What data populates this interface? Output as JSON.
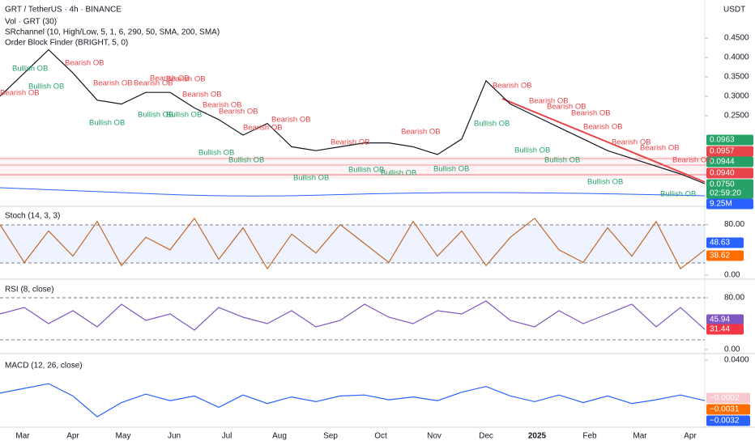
{
  "header": {
    "title": "GRT / TetherUS · 4h · BINANCE",
    "currency": "USDT",
    "indicators": [
      "Vol · GRT (30)",
      "SRchannel (10, High/Low, 5, 1, 6, 290, 50, SMA, 200, SMA)",
      "Order Block Finder (BRIGHT, 5, 0)"
    ]
  },
  "bearish_labels": [
    "Bearish OB",
    "Bearish OB",
    "Bearish OB",
    "Bearish OB",
    "Bearish OB",
    "Bearish OB",
    "Bearish OB",
    "Bearish OB",
    "Bearish OB",
    "Bearish OB",
    "Bearish OB",
    "Bearish OB",
    "Bearish OB",
    "Bearish OB",
    "Bearish OB",
    "Bearish OB",
    "Bearish OB",
    "Bearish OB",
    "Bearish OB",
    "Bearish OB",
    "Bearish OB"
  ],
  "bullish_labels": [
    "Bullish OB",
    "Bullish OB",
    "Bullish OB",
    "Bullish OB",
    "Bullish OB",
    "Bullish OB",
    "Bullish OB",
    "Bullish OB",
    "Bullish OB",
    "Bullish OB",
    "Bullish OB",
    "Bullish OB",
    "Bullish OB",
    "Bullish OB",
    "Bullish OB",
    "Bullish OB"
  ],
  "price_tags": [
    {
      "label": "0.0963",
      "color": "#26a269"
    },
    {
      "label": "0.0957",
      "color": "#e8454a"
    },
    {
      "label": "0.0944",
      "color": "#26a269"
    },
    {
      "label": "0.0940",
      "color": "#e8454a"
    },
    {
      "label": "0.0750",
      "color": "#26a269"
    },
    {
      "label": "02:59:20",
      "color": "#26a269"
    },
    {
      "label": "9.25M",
      "color": "#2962ff"
    }
  ],
  "stoch_tags": [
    {
      "label": "48.63",
      "color": "#2962ff"
    },
    {
      "label": "38.62",
      "color": "#ff6d00"
    }
  ],
  "rsi_tags": [
    {
      "label": "45.94",
      "color": "#7e57c2"
    },
    {
      "label": "31.44",
      "color": "#f23645"
    }
  ],
  "macd_tags": [
    {
      "label": "−0.0002",
      "color": "#f8c8cc"
    },
    {
      "label": "−0.0031",
      "color": "#ff6d00"
    },
    {
      "label": "−0.0032",
      "color": "#2962ff"
    }
  ],
  "time_axis": [
    "Mar",
    "Apr",
    "May",
    "Jun",
    "Jul",
    "Aug",
    "Sep",
    "Oct",
    "Nov",
    "Dec",
    "2025",
    "Feb",
    "Mar",
    "Apr"
  ],
  "chart_data": [
    {
      "type": "line",
      "color": "#131722",
      "ylim": [
        0.027,
        0.5375
      ],
      "yticks": [
        {
          "value": 0.45,
          "label": "0.4500"
        },
        {
          "value": 0.4,
          "label": "0.4000"
        },
        {
          "value": 0.35,
          "label": "0.3500"
        },
        {
          "value": 0.3,
          "label": "0.3000"
        },
        {
          "value": 0.25,
          "label": "0.2500"
        }
      ],
      "values": [
        0.3,
        0.36,
        0.42,
        0.36,
        0.29,
        0.28,
        0.31,
        0.31,
        0.27,
        0.24,
        0.2,
        0.23,
        0.17,
        0.16,
        0.17,
        0.18,
        0.18,
        0.17,
        0.15,
        0.19,
        0.34,
        0.28,
        0.25,
        0.22,
        0.19,
        0.16,
        0.14,
        0.12,
        0.1,
        0.075
      ]
    },
    {
      "type": "line",
      "title": "Stoch (14, 3, 3)",
      "color": "#c26a2b",
      "ylim": [
        0,
        100
      ],
      "yticks": [
        {
          "value": 80,
          "label": "80.00"
        },
        {
          "value": 0,
          "label": "0.00"
        }
      ],
      "values": [
        80,
        20,
        70,
        30,
        85,
        15,
        60,
        40,
        90,
        25,
        75,
        10,
        65,
        35,
        80,
        50,
        20,
        85,
        30,
        70,
        15,
        60,
        90,
        40,
        20,
        75,
        30,
        85,
        10,
        40
      ]
    },
    {
      "type": "line",
      "title": "RSI (8, close)",
      "color": "#7e57c2",
      "ylim": [
        0,
        100
      ],
      "yticks": [
        {
          "value": 80,
          "label": "80.00"
        },
        {
          "value": 0,
          "label": "0.00"
        }
      ],
      "values": [
        55,
        65,
        40,
        60,
        35,
        70,
        45,
        55,
        30,
        65,
        50,
        40,
        60,
        35,
        45,
        70,
        50,
        40,
        60,
        55,
        75,
        45,
        35,
        60,
        40,
        55,
        70,
        35,
        65,
        31
      ]
    },
    {
      "type": "line",
      "title": "MACD (12, 26, close)",
      "color": "#2962ff",
      "ylim": [
        -0.0285,
        0.0443
      ],
      "yticks": [
        {
          "value": 0.04,
          "label": "0.0400"
        }
      ],
      "values": [
        0.005,
        0.01,
        0.015,
        0.002,
        -0.02,
        -0.005,
        0.004,
        -0.003,
        0.002,
        -0.01,
        0.003,
        -0.006,
        0.001,
        -0.004,
        0.002,
        0.003,
        -0.002,
        0.001,
        -0.003,
        0.006,
        0.012,
        0.002,
        -0.004,
        0.003,
        -0.005,
        0.002,
        -0.006,
        -0.002,
        0.003,
        -0.003
      ]
    }
  ]
}
